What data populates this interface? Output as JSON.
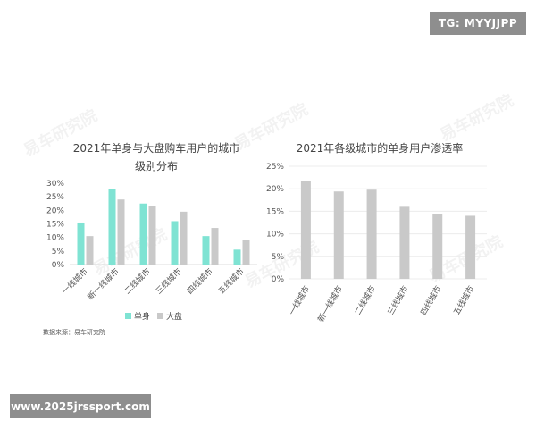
{
  "overlays": {
    "tg_label": "TG: MYYJJPP",
    "url_label": "www.2025jrssport.com"
  },
  "watermark": "易车研究院",
  "source": "数据来源：易车研究院",
  "colors": {
    "single": "#7fe3d3",
    "overall": "#c9c9c9",
    "grid": "#ececec",
    "axis_text": "#555555"
  },
  "chart_data": [
    {
      "type": "bar",
      "title_lines": [
        "2021年单身与大盘购车用户的城市",
        "级别分布"
      ],
      "categories": [
        "一线城市",
        "新一线城市",
        "二线城市",
        "三线城市",
        "四线城市",
        "五线城市"
      ],
      "series": [
        {
          "name": "单身",
          "values": [
            15.5,
            28,
            22.5,
            16,
            10.5,
            5.5
          ]
        },
        {
          "name": "大盘",
          "values": [
            10.5,
            24,
            21.5,
            19.5,
            13.5,
            9
          ]
        }
      ],
      "ylim": [
        0,
        30
      ],
      "yticks": [
        "0%",
        "5%",
        "10%",
        "15%",
        "20%",
        "25%",
        "30%"
      ],
      "legend": "bottom-center",
      "grid": false
    },
    {
      "type": "bar",
      "title_lines": [
        "2021年各级城市的单身用户渗透率"
      ],
      "categories": [
        "一线城市",
        "新一线城市",
        "二线城市",
        "三线城市",
        "四线城市",
        "五线城市"
      ],
      "series": [
        {
          "values": [
            21.8,
            19.4,
            19.8,
            16,
            14.3,
            14
          ]
        }
      ],
      "ylim": [
        0,
        25
      ],
      "yticks": [
        "0%",
        "5%",
        "10%",
        "15%",
        "20%",
        "25%"
      ],
      "grid": true
    }
  ]
}
